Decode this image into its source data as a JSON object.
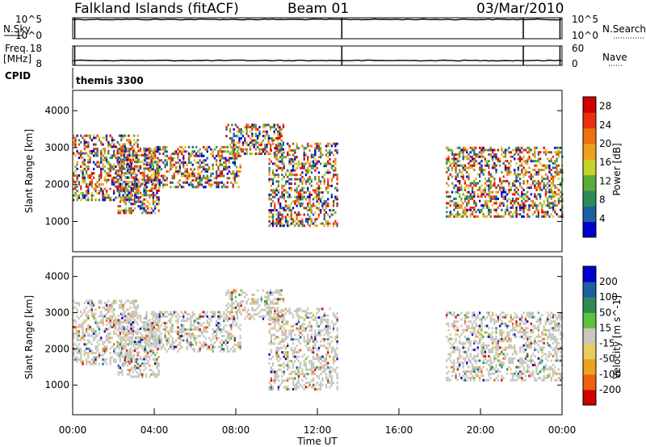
{
  "header": {
    "station": "Falkland Islands (fitACF)",
    "beam": "Beam 01",
    "date": "03/Mar/2010"
  },
  "panel_labels": {
    "nsky": "N.Sky",
    "nsearch": "N.Search",
    "freq": "Freq.",
    "freq_unit": "[MHz]",
    "nave": "Nave",
    "cpid": "CPID",
    "cpid_value": "themis 3300"
  },
  "palettes": {
    "power": [
      "#0000cc",
      "#1e5fa0",
      "#2e8b57",
      "#5aab3a",
      "#c8d228",
      "#f0a020",
      "#f07010",
      "#e83010",
      "#d00000"
    ],
    "velocity": [
      "#d00000",
      "#f06010",
      "#f0a020",
      "#e8cc60",
      "#c8c8c0",
      "#60c040",
      "#2e8b57",
      "#1e5fa0",
      "#0000cc"
    ]
  },
  "chart_data": [
    {
      "type": "line",
      "name": "nsky-nsearch",
      "title": "N.Sky / N.Search",
      "left_ticks": [
        "10^5",
        "10^0"
      ],
      "right_ticks": [
        "10^5",
        "10^0"
      ],
      "left_label": "N.Sky",
      "right_label": "N.Search",
      "level_log": 4.6,
      "vertical_markers_hour": [
        0.1,
        13.2,
        22.1,
        23.9
      ]
    },
    {
      "type": "line",
      "name": "freq-nave",
      "title": "Freq. / Nave",
      "left_ticks": [
        "18",
        "8"
      ],
      "right_ticks": [
        "60",
        "0"
      ],
      "left_label": "Freq. [MHz]",
      "right_label": "Nave",
      "freq_mhz": 10.5,
      "vertical_markers_hour": [
        0.1,
        13.2,
        22.1,
        23.9
      ]
    },
    {
      "type": "heatmap",
      "name": "power",
      "ylabel": "Slant Range [km]",
      "yticks": [
        1000,
        2000,
        3000,
        4000
      ],
      "ylim": [
        180,
        4550
      ],
      "xlim": [
        0,
        24
      ],
      "colorbar": {
        "label": "Power [dB]",
        "ticks": [
          "4",
          "8",
          "12",
          "16",
          "20",
          "24",
          "28"
        ],
        "range": [
          0,
          30
        ]
      }
    },
    {
      "type": "heatmap",
      "name": "velocity",
      "ylabel": "Slant Range [km]",
      "yticks": [
        1000,
        2000,
        3000,
        4000
      ],
      "ylim": [
        180,
        4550
      ],
      "xlim": [
        0,
        24
      ],
      "xticks": [
        "00:00",
        "04:00",
        "08:00",
        "12:00",
        "16:00",
        "20:00",
        "00:00"
      ],
      "xlabel": "Time UT",
      "colorbar": {
        "label": "Velocity [m s^-1]",
        "ticks": [
          "200",
          "100",
          "50",
          "15",
          "-15",
          "-50",
          "-100",
          "-200"
        ]
      }
    }
  ],
  "echo_regions": [
    {
      "t0": 0.0,
      "t1": 3.2,
      "r0": 1550,
      "r1": 3300
    },
    {
      "t0": 2.2,
      "t1": 4.2,
      "r0": 1200,
      "r1": 3000
    },
    {
      "t0": 3.5,
      "t1": 8.2,
      "r0": 1900,
      "r1": 3000
    },
    {
      "t0": 7.5,
      "t1": 10.3,
      "r0": 2800,
      "r1": 3600
    },
    {
      "t0": 9.6,
      "t1": 13.0,
      "r0": 850,
      "r1": 3100
    },
    {
      "t0": 18.3,
      "t1": 24.0,
      "r0": 1100,
      "r1": 3000
    }
  ]
}
